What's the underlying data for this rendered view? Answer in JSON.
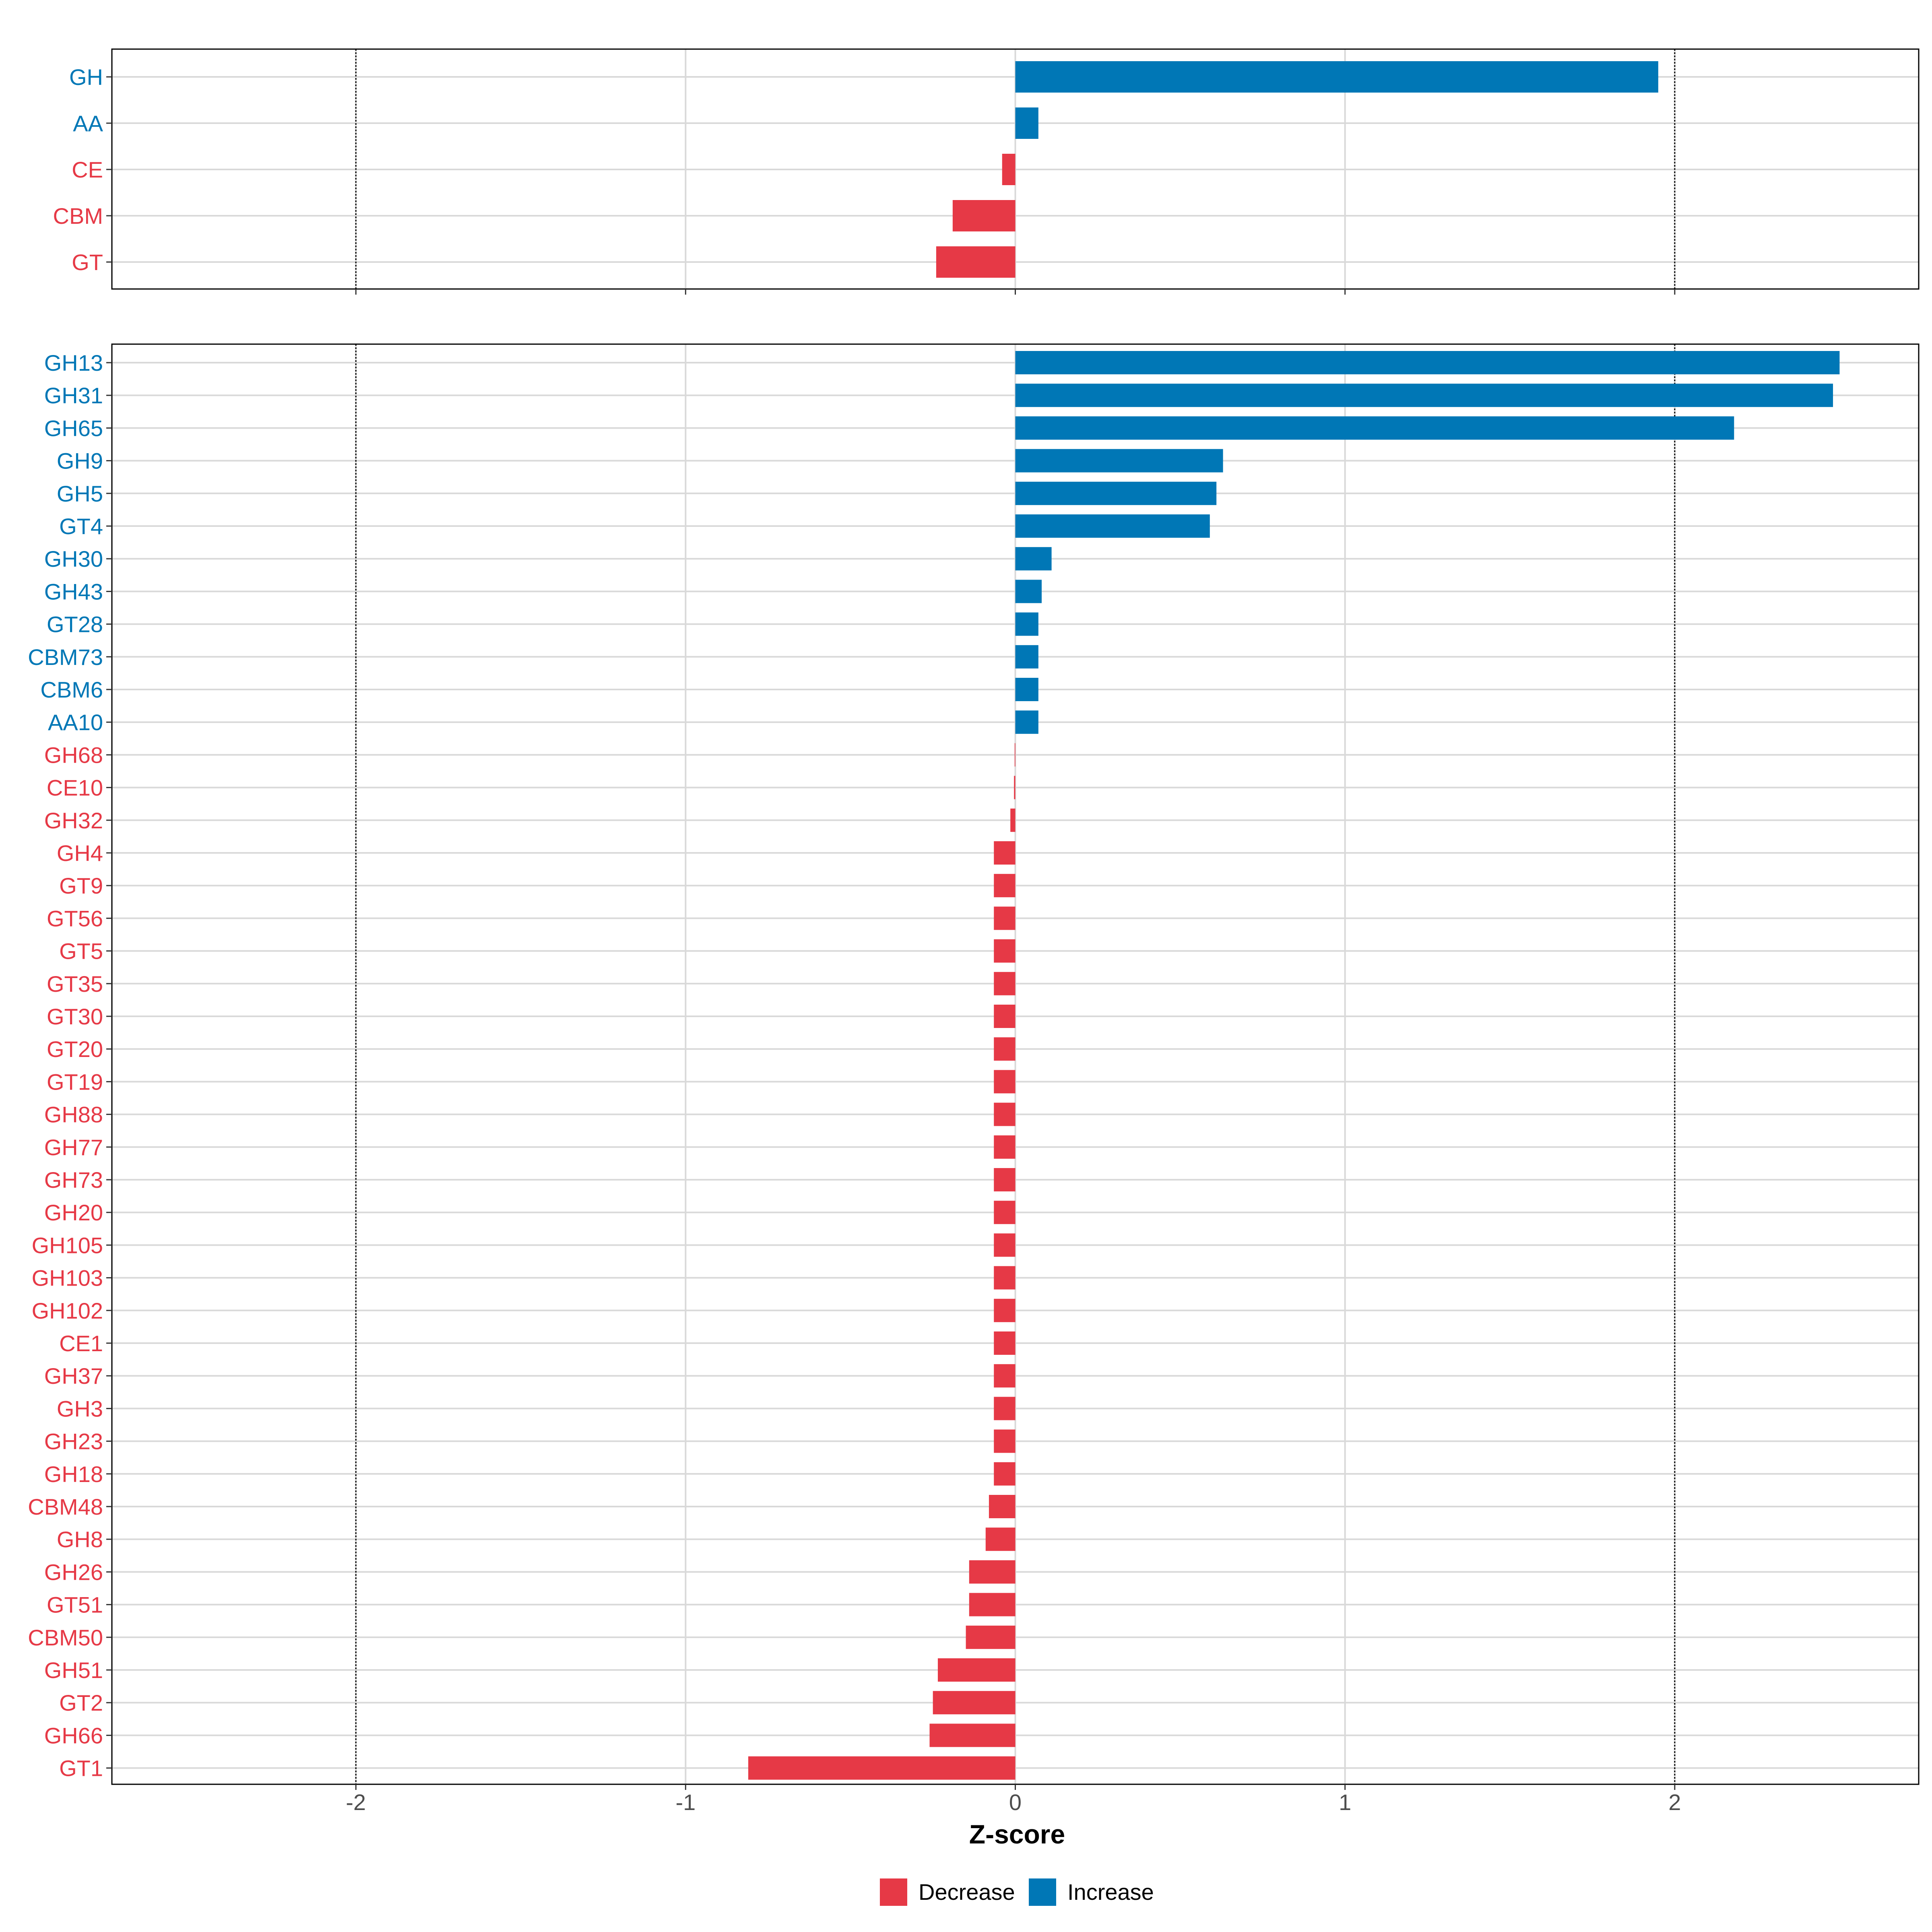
{
  "colors": {
    "decrease": "#e63946",
    "increase": "#0077b6",
    "grid": "#d9d9d9",
    "reference_line": "#000000",
    "axis_text": "#4d4d4d"
  },
  "chart_data": {
    "type": "bar",
    "orientation": "horizontal",
    "xlabel": "Z-score",
    "xlim": [
      -2.74,
      2.74
    ],
    "xticks": [
      -2,
      -1,
      0,
      1,
      2
    ],
    "xtick_labels": [
      "-2",
      "-1",
      "0",
      "1",
      "2"
    ],
    "reference_lines": [
      -2,
      2
    ],
    "grid": true,
    "legend_position": "bottom",
    "legend": [
      {
        "key": "decrease",
        "label": "Decrease"
      },
      {
        "key": "increase",
        "label": "Increase"
      }
    ],
    "panels": [
      {
        "name": "family",
        "categories": [
          "GH",
          "AA",
          "CE",
          "CBM",
          "GT"
        ],
        "values": [
          1.95,
          0.07,
          -0.04,
          -0.19,
          -0.24
        ]
      },
      {
        "name": "subfamily",
        "categories": [
          "GH13",
          "GH31",
          "GH65",
          "GH9",
          "GH5",
          "GT4",
          "GH30",
          "GH43",
          "GT28",
          "CBM73",
          "CBM6",
          "AA10",
          "GH68",
          "CE10",
          "GH32",
          "GH4",
          "GT9",
          "GT56",
          "GT5",
          "GT35",
          "GT30",
          "GT20",
          "GT19",
          "GH88",
          "GH77",
          "GH73",
          "GH20",
          "GH105",
          "GH103",
          "GH102",
          "CE1",
          "GH37",
          "GH3",
          "GH23",
          "GH18",
          "CBM48",
          "GH8",
          "GH26",
          "GT51",
          "CBM50",
          "GH51",
          "GT2",
          "GH66",
          "GT1"
        ],
        "values": [
          2.5,
          2.48,
          2.18,
          0.63,
          0.61,
          0.59,
          0.11,
          0.08,
          0.07,
          0.07,
          0.07,
          0.07,
          -0.002,
          -0.004,
          -0.015,
          -0.065,
          -0.065,
          -0.065,
          -0.065,
          -0.065,
          -0.065,
          -0.065,
          -0.065,
          -0.065,
          -0.065,
          -0.065,
          -0.065,
          -0.065,
          -0.065,
          -0.065,
          -0.065,
          -0.065,
          -0.065,
          -0.065,
          -0.065,
          -0.08,
          -0.09,
          -0.14,
          -0.14,
          -0.15,
          -0.235,
          -0.25,
          -0.26,
          -0.81
        ]
      }
    ]
  }
}
